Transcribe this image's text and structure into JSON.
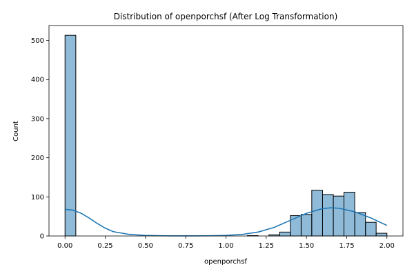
{
  "chart_data": {
    "type": "bar",
    "title": "Distribution of openporchsf (After Log Transformation)",
    "xlabel": "openporchsf",
    "ylabel": "Count",
    "xlim": [
      -0.0996,
      2.0996
    ],
    "ylim": [
      0,
      538
    ],
    "xticks": [
      0.0,
      0.25,
      0.5,
      0.75,
      1.0,
      1.25,
      1.5,
      1.75,
      2.0
    ],
    "xtick_labels": [
      "0.00",
      "0.25",
      "0.50",
      "0.75",
      "1.00",
      "1.25",
      "1.50",
      "1.75",
      "2.00"
    ],
    "yticks": [
      0,
      100,
      200,
      300,
      400,
      500
    ],
    "ytick_labels": [
      "0",
      "100",
      "200",
      "300",
      "400",
      "500"
    ],
    "grid": false,
    "bar_color": "#1f77b4",
    "bar_alpha": 0.5,
    "bar_edge_color": "#000000",
    "kde_color": "#1f77b4",
    "bins": [
      {
        "x0": 0.0,
        "x1": 0.067,
        "count": 513
      },
      {
        "x0": 1.133,
        "x1": 1.2,
        "count": 1
      },
      {
        "x0": 1.267,
        "x1": 1.333,
        "count": 3
      },
      {
        "x0": 1.333,
        "x1": 1.4,
        "count": 10
      },
      {
        "x0": 1.4,
        "x1": 1.467,
        "count": 52
      },
      {
        "x0": 1.467,
        "x1": 1.533,
        "count": 55
      },
      {
        "x0": 1.533,
        "x1": 1.6,
        "count": 117
      },
      {
        "x0": 1.6,
        "x1": 1.667,
        "count": 106
      },
      {
        "x0": 1.667,
        "x1": 1.733,
        "count": 102
      },
      {
        "x0": 1.733,
        "x1": 1.8,
        "count": 112
      },
      {
        "x0": 1.8,
        "x1": 1.867,
        "count": 60
      },
      {
        "x0": 1.867,
        "x1": 1.933,
        "count": 35
      },
      {
        "x0": 1.933,
        "x1": 2.0,
        "count": 7
      }
    ],
    "kde": {
      "x": [
        0.0,
        0.05,
        0.1,
        0.15,
        0.2,
        0.25,
        0.3,
        0.4,
        0.5,
        0.6,
        0.7,
        0.8,
        0.9,
        1.0,
        1.1,
        1.2,
        1.3,
        1.4,
        1.5,
        1.6,
        1.65,
        1.7,
        1.8,
        1.9,
        2.0
      ],
      "y": [
        68,
        66,
        58,
        46,
        32,
        20,
        11,
        4,
        1.5,
        0.5,
        0.3,
        0.3,
        0.6,
        1.5,
        4,
        10,
        22,
        40,
        58,
        70,
        72,
        71,
        62,
        46,
        27
      ]
    }
  }
}
